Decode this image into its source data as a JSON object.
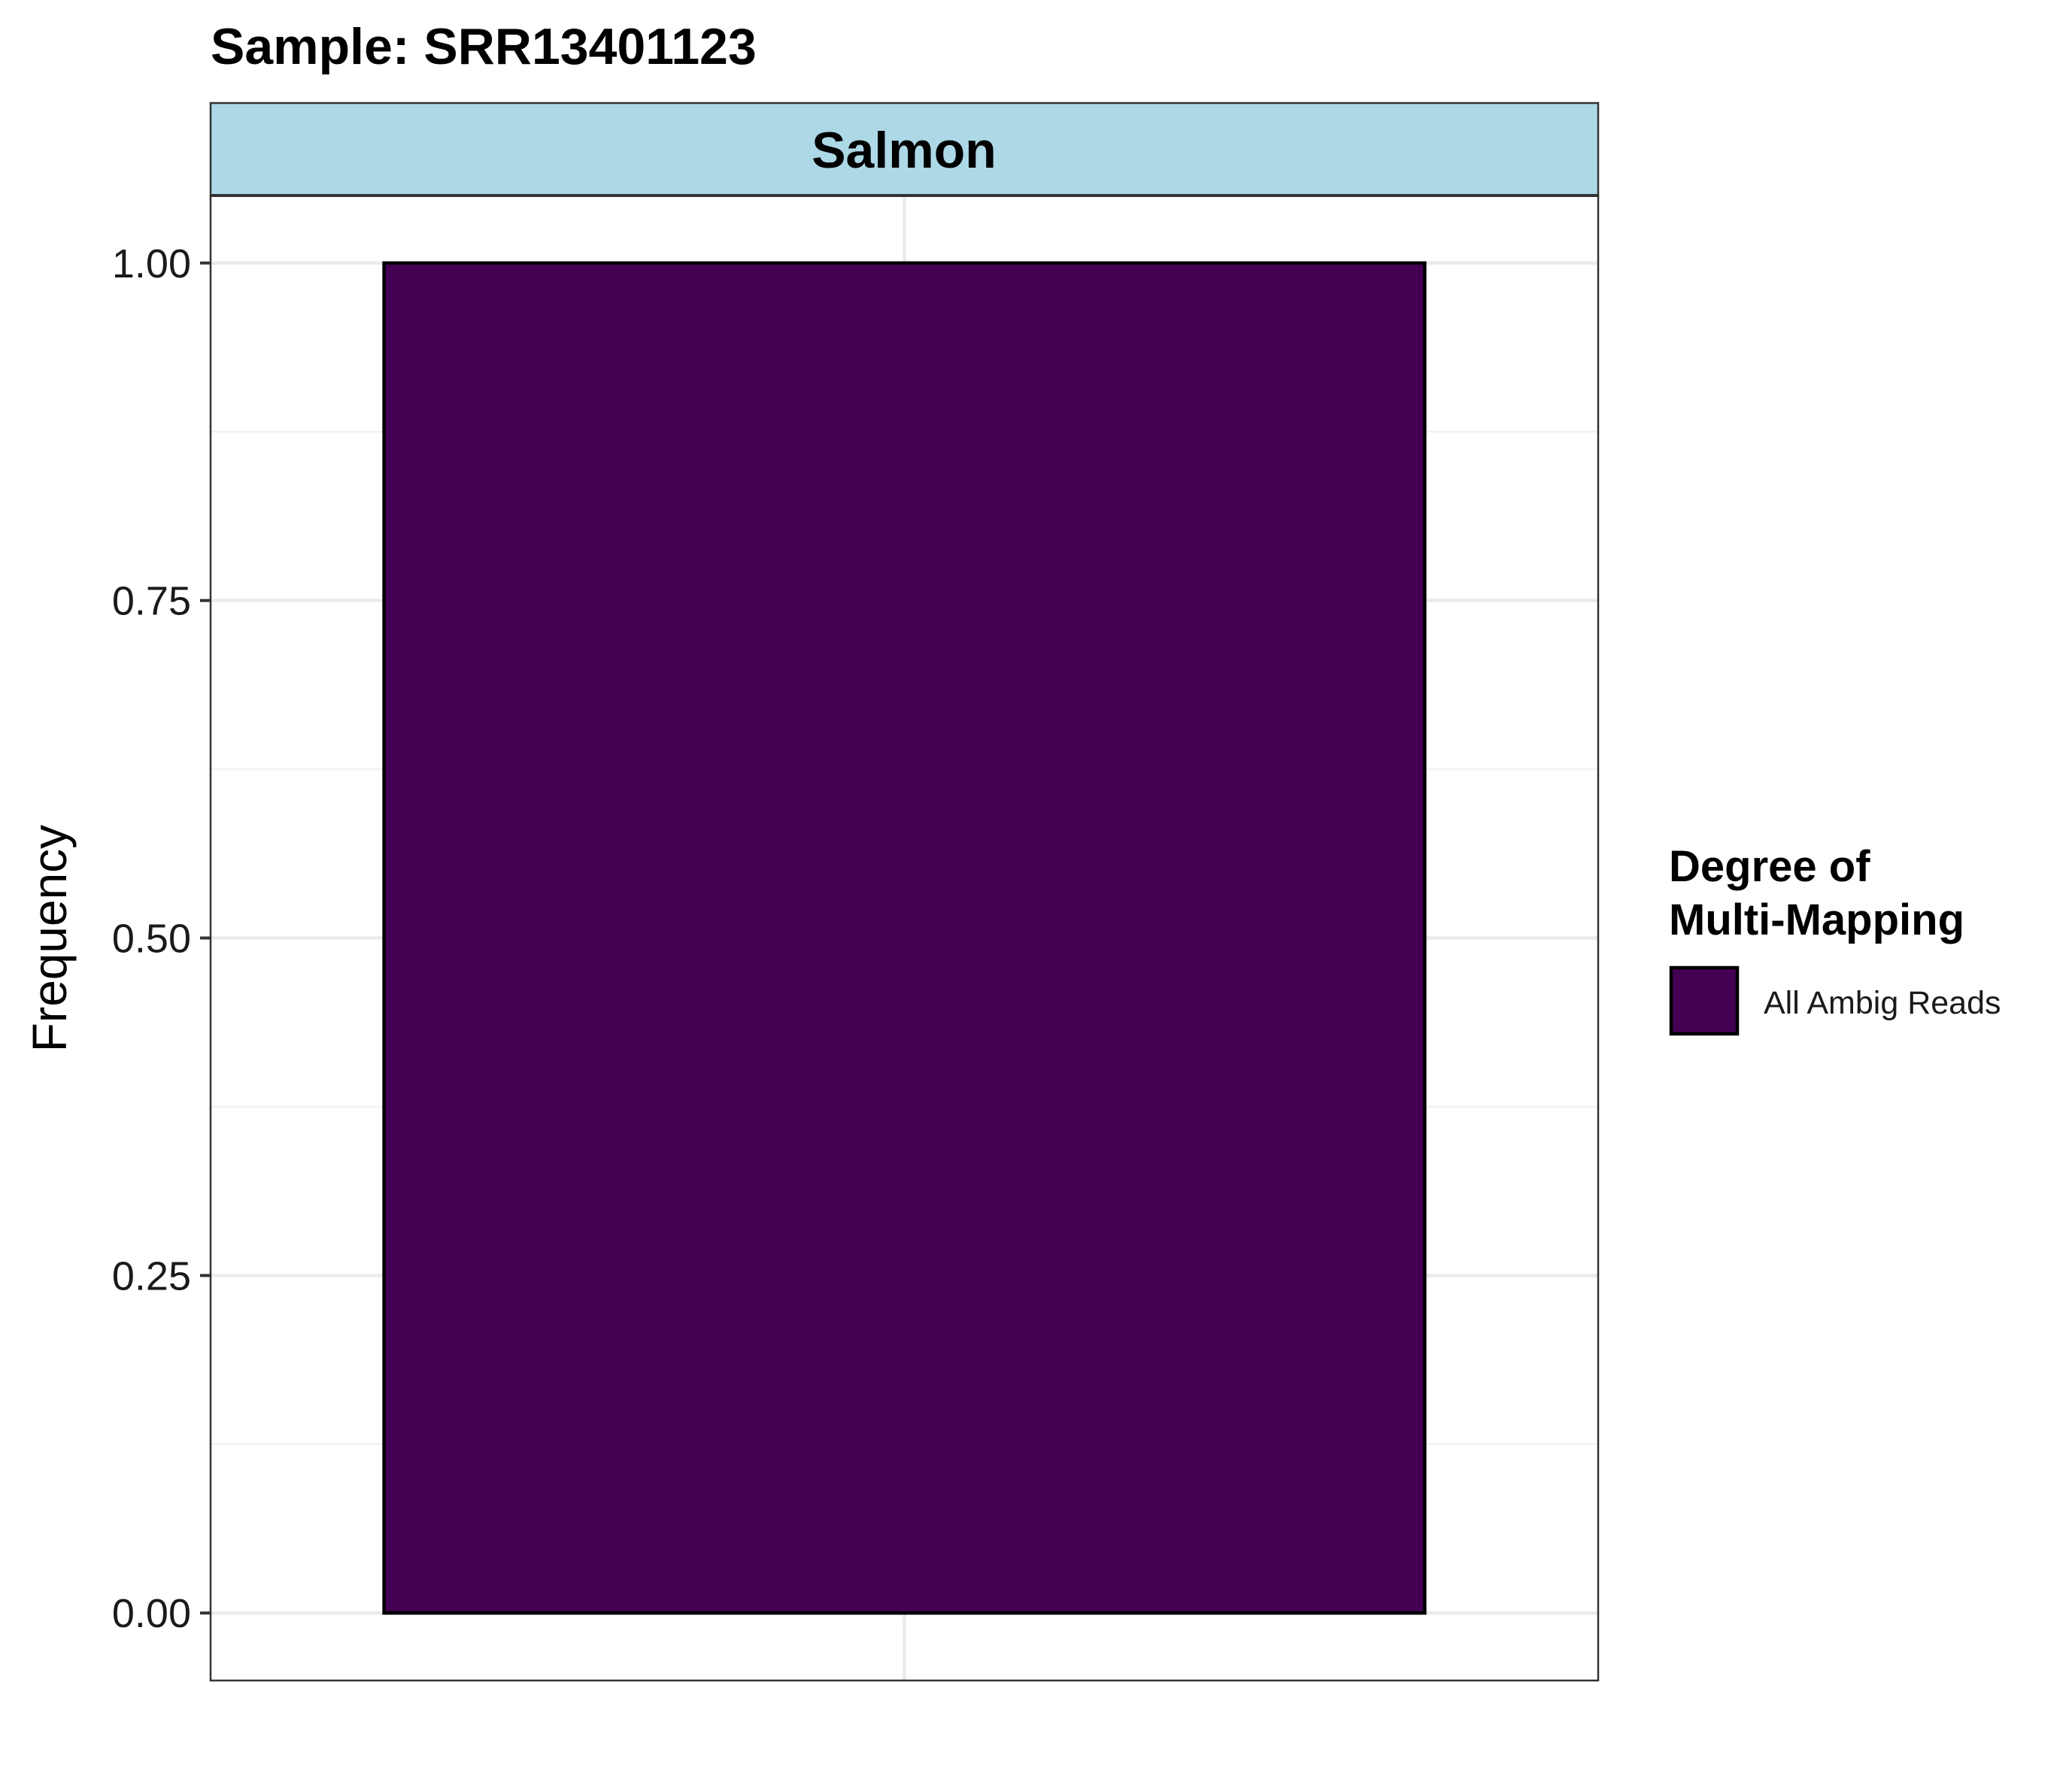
{
  "chart_data": {
    "type": "bar",
    "title": "Sample: SRR13401123",
    "facet": "Salmon",
    "categories": [
      ""
    ],
    "series": [
      {
        "name": "All Ambig Reads",
        "values": [
          1.0
        ],
        "color": "#440154"
      }
    ],
    "xlabel": "",
    "ylabel": "Frequency",
    "ylim": [
      -0.05,
      1.05
    ],
    "yticks": [
      "0.00",
      "0.25",
      "0.50",
      "0.75",
      "1.00"
    ],
    "ytick_values": [
      0,
      0.25,
      0.5,
      0.75,
      1.0
    ],
    "grid": true,
    "legend": {
      "title_line1": "Degree of",
      "title_line2": "Multi-Mapping",
      "placement": "right"
    },
    "strip_color": "#add8e6",
    "bar_edge_color": "#000000"
  }
}
